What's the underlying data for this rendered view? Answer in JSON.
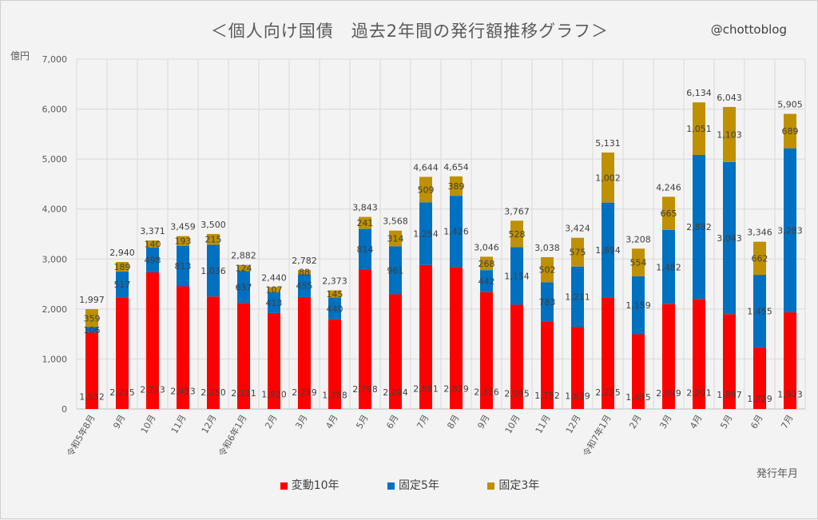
{
  "chart_data": {
    "type": "bar",
    "stacked": true,
    "title": "＜個人向け国債　過去2年間の発行額推移グラフ＞",
    "author": "@chottoblog",
    "ylabel": "億円",
    "xlabel": "発行年月",
    "ylim": [
      0,
      7000
    ],
    "yticks": [
      "0",
      "1,000",
      "2,000",
      "3,000",
      "4,000",
      "5,000",
      "6,000",
      "7,000"
    ],
    "grid": true,
    "legend_position": "bottom",
    "categories": [
      "令和5年8月",
      "9月",
      "10月",
      "11月",
      "12月",
      "令和6年1月",
      "2月",
      "3月",
      "4月",
      "5月",
      "6月",
      "7月",
      "8月",
      "9月",
      "10月",
      "11月",
      "12月",
      "令和7年1月",
      "2月",
      "3月",
      "4月",
      "5月",
      "6月",
      "7月"
    ],
    "series": [
      {
        "name": "変動10年",
        "color": "#ff0000",
        "values": [
          1532,
          2235,
          2733,
          2453,
          2250,
          2121,
          1920,
          2239,
          1788,
          2788,
          2294,
          2881,
          2839,
          2336,
          2085,
          1752,
          1639,
          2235,
          1495,
          2099,
          2201,
          1897,
          1229,
          1933
        ],
        "labels": [
          "1,532",
          "2,235",
          "2,733",
          "2,453",
          "2,250",
          "2,121",
          "1,920",
          "2,239",
          "1,788",
          "2,788",
          "2,294",
          "2,881",
          "2,839",
          "2,336",
          "2,085",
          "1,752",
          "1,639",
          "2,235",
          "1,495",
          "2,099",
          "2,201",
          "1,897",
          "1,229",
          "1,933"
        ]
      },
      {
        "name": "固定5年",
        "color": "#0070c0",
        "values": [
          106,
          517,
          498,
          813,
          1036,
          637,
          413,
          455,
          440,
          814,
          961,
          1254,
          1426,
          442,
          1154,
          783,
          1211,
          1894,
          1159,
          1482,
          2882,
          3043,
          1455,
          3283
        ],
        "labels": [
          "106",
          "517",
          "498",
          "813",
          "1,036",
          "637",
          "413",
          "455",
          "440",
          "814",
          "961",
          "1,254",
          "1,426",
          "442",
          "1,154",
          "783",
          "1,211",
          "1,894",
          "1,159",
          "1,482",
          "2,882",
          "3,043",
          "1,455",
          "3,283"
        ]
      },
      {
        "name": "固定3年",
        "color": "#bf9000",
        "values": [
          359,
          189,
          140,
          193,
          215,
          124,
          107,
          88,
          145,
          241,
          314,
          509,
          389,
          268,
          528,
          502,
          575,
          1002,
          554,
          665,
          1051,
          1103,
          662,
          689
        ],
        "labels": [
          "359",
          "189",
          "140",
          "193",
          "215",
          "124",
          "107",
          "88",
          "145",
          "241",
          "314",
          "509",
          "389",
          "268",
          "528",
          "502",
          "575",
          "1,002",
          "554",
          "665",
          "1,051",
          "1,103",
          "662",
          "689"
        ]
      }
    ],
    "totals": [
      1997,
      2940,
      3371,
      3459,
      3500,
      2882,
      2440,
      2782,
      2373,
      3843,
      3568,
      4644,
      4654,
      3046,
      3767,
      3038,
      3424,
      5131,
      3208,
      4246,
      6134,
      6043,
      3346,
      5905
    ],
    "total_labels": [
      "1,997",
      "2,940",
      "3,371",
      "3,459",
      "3,500",
      "2,882",
      "2,440",
      "2,782",
      "2,373",
      "3,843",
      "3,568",
      "4,644",
      "4,654",
      "3,046",
      "3,767",
      "3,038",
      "3,424",
      "5,131",
      "3,208",
      "4,246",
      "6,134",
      "6,043",
      "3,346",
      "5,905"
    ]
  }
}
